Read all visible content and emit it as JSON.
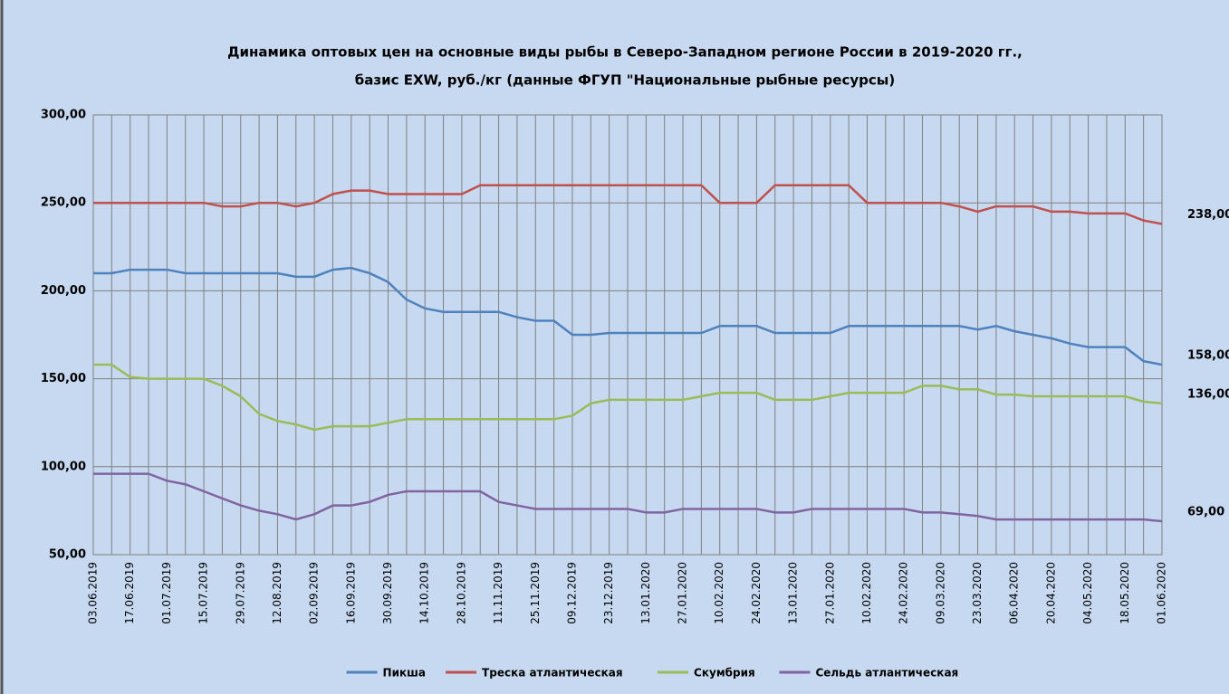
{
  "chart_data": {
    "type": "line",
    "title": [
      "Динамика  оптовых цен на основные виды рыбы в  Северо-Западном регионе России в 2019-2020 гг.,",
      "базис EXW, руб./кг (данные ФГУП \"Национальные рыбные ресурсы)"
    ],
    "categories": [
      "03.06.2019",
      null,
      "17.06.2019",
      null,
      "01.07.2019",
      null,
      "15.07.2019",
      null,
      "29.07.2019",
      null,
      "12.08.2019",
      null,
      "02.09.2019",
      null,
      "16.09.2019",
      null,
      "30.09.2019",
      null,
      "14.10.2019",
      null,
      "28.10.2019",
      null,
      "11.11.2019",
      null,
      "25.11.2019",
      null,
      "09.12.2019",
      null,
      "23.12.2019",
      null,
      "13.01.2020",
      null,
      "27.01.2020",
      null,
      "10.02.2020",
      null,
      "24.02.2020",
      null,
      "13.01.2020",
      null,
      "27.01.2020",
      null,
      "10.02.2020",
      null,
      "24.02.2020",
      null,
      "09.03.2020",
      null,
      "23.03.2020",
      null,
      "06.04.2020",
      null,
      "20.04.2020",
      null,
      "04.05.2020",
      null,
      "18.05.2020",
      null,
      "01.06.2020"
    ],
    "series": [
      {
        "name": "Пикша",
        "color": "#4f81bd",
        "values": [
          210,
          210,
          212,
          212,
          212,
          210,
          210,
          210,
          210,
          210,
          210,
          208,
          208,
          212,
          213,
          210,
          205,
          195,
          190,
          188,
          188,
          188,
          188,
          185,
          183,
          183,
          175,
          175,
          176,
          176,
          176,
          176,
          176,
          176,
          180,
          180,
          180,
          176,
          176,
          176,
          176,
          180,
          180,
          180,
          180,
          180,
          180,
          180,
          178,
          180,
          177,
          175,
          173,
          170,
          168,
          168,
          168,
          160,
          158
        ],
        "value_labels": [
          null,
          null,
          null,
          null,
          null,
          null,
          null,
          null,
          null,
          null,
          null,
          null,
          null,
          null,
          null,
          null,
          null,
          null,
          null,
          null,
          null,
          null,
          null,
          null,
          null,
          null,
          null,
          null,
          null,
          null,
          null,
          null,
          null,
          null,
          null,
          null,
          null,
          null,
          null,
          null,
          null,
          null,
          null,
          null,
          null,
          null,
          null,
          null,
          null,
          null,
          null,
          null,
          null,
          null,
          null,
          null,
          null,
          null,
          "158,00"
        ]
      },
      {
        "name": "Треска атлантическая",
        "color": "#c0504d",
        "values": [
          250,
          250,
          250,
          250,
          250,
          250,
          250,
          248,
          248,
          250,
          250,
          248,
          250,
          255,
          257,
          257,
          255,
          255,
          255,
          255,
          255,
          260,
          260,
          260,
          260,
          260,
          260,
          260,
          260,
          260,
          260,
          260,
          260,
          260,
          250,
          250,
          250,
          260,
          260,
          260,
          260,
          260,
          250,
          250,
          250,
          250,
          250,
          248,
          245,
          248,
          248,
          248,
          245,
          245,
          244,
          244,
          244,
          240,
          238
        ],
        "value_labels": [
          null,
          null,
          null,
          null,
          null,
          null,
          null,
          null,
          null,
          null,
          null,
          null,
          null,
          null,
          null,
          null,
          null,
          null,
          null,
          null,
          null,
          null,
          null,
          null,
          null,
          null,
          null,
          null,
          null,
          null,
          null,
          null,
          null,
          null,
          null,
          null,
          null,
          null,
          null,
          null,
          null,
          null,
          null,
          null,
          null,
          null,
          null,
          null,
          null,
          null,
          null,
          null,
          null,
          null,
          null,
          null,
          null,
          null,
          "238,00"
        ]
      },
      {
        "name": "Скумбрия",
        "color": "#9bbb59",
        "values": [
          158,
          158,
          151,
          150,
          150,
          150,
          150,
          146,
          140,
          130,
          126,
          124,
          121,
          123,
          123,
          123,
          125,
          127,
          127,
          127,
          127,
          127,
          127,
          127,
          127,
          127,
          129,
          136,
          138,
          138,
          138,
          138,
          138,
          140,
          142,
          142,
          142,
          138,
          138,
          138,
          140,
          142,
          142,
          142,
          142,
          146,
          146,
          144,
          144,
          141,
          141,
          140,
          140,
          140,
          140,
          140,
          140,
          137,
          136
        ],
        "value_labels": [
          null,
          null,
          null,
          null,
          null,
          null,
          null,
          null,
          null,
          null,
          null,
          null,
          null,
          null,
          null,
          null,
          null,
          null,
          null,
          null,
          null,
          null,
          null,
          null,
          null,
          null,
          null,
          null,
          null,
          null,
          null,
          null,
          null,
          null,
          null,
          null,
          null,
          null,
          null,
          null,
          null,
          null,
          null,
          null,
          null,
          null,
          null,
          null,
          null,
          null,
          null,
          null,
          null,
          null,
          null,
          null,
          null,
          null,
          "136,00"
        ]
      },
      {
        "name": "Сельдь атлантическая",
        "color": "#8064a2",
        "values": [
          96,
          96,
          96,
          96,
          92,
          90,
          86,
          82,
          78,
          75,
          73,
          70,
          73,
          78,
          78,
          80,
          84,
          86,
          86,
          86,
          86,
          86,
          80,
          78,
          76,
          76,
          76,
          76,
          76,
          76,
          74,
          74,
          76,
          76,
          76,
          76,
          76,
          74,
          74,
          76,
          76,
          76,
          76,
          76,
          76,
          74,
          74,
          73,
          72,
          70,
          70,
          70,
          70,
          70,
          70,
          70,
          70,
          70,
          69
        ],
        "value_labels": [
          null,
          null,
          null,
          null,
          null,
          null,
          null,
          null,
          null,
          null,
          null,
          null,
          null,
          null,
          null,
          null,
          null,
          null,
          null,
          null,
          null,
          null,
          null,
          null,
          null,
          null,
          null,
          null,
          null,
          null,
          null,
          null,
          null,
          null,
          null,
          null,
          null,
          null,
          null,
          null,
          null,
          null,
          null,
          null,
          null,
          null,
          null,
          null,
          null,
          null,
          null,
          null,
          null,
          null,
          null,
          null,
          null,
          null,
          "69,00"
        ]
      }
    ],
    "ylim": [
      50,
      300
    ],
    "yticks": [
      {
        "value": 50,
        "label": "50,00"
      },
      {
        "value": 100,
        "label": "100,00"
      },
      {
        "value": 150,
        "label": "150,00"
      },
      {
        "value": 200,
        "label": "200,00"
      },
      {
        "value": 250,
        "label": "250,00"
      },
      {
        "value": 300,
        "label": "300,00"
      }
    ],
    "grid": true
  }
}
